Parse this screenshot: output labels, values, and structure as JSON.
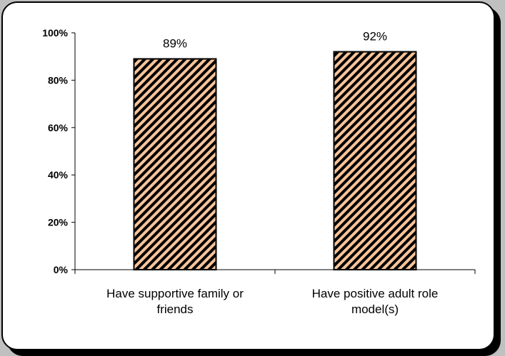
{
  "chart_data": {
    "type": "bar",
    "title": "",
    "xlabel": "",
    "ylabel": "",
    "categories": [
      [
        "Have supportive family or",
        "friends"
      ],
      [
        "Have positive adult role",
        "model(s)"
      ]
    ],
    "values": [
      89,
      92
    ],
    "value_labels": [
      "89%",
      "92%"
    ],
    "yticks": [
      "0%",
      "20%",
      "40%",
      "60%",
      "80%",
      "100%"
    ],
    "ylim": [
      0,
      100
    ],
    "grid": false,
    "bar_fill": "#f7c49a",
    "bar_hatch": "#000000",
    "bar_pattern": "diagonal-stripes",
    "frame_background": "#c0c0c0"
  }
}
